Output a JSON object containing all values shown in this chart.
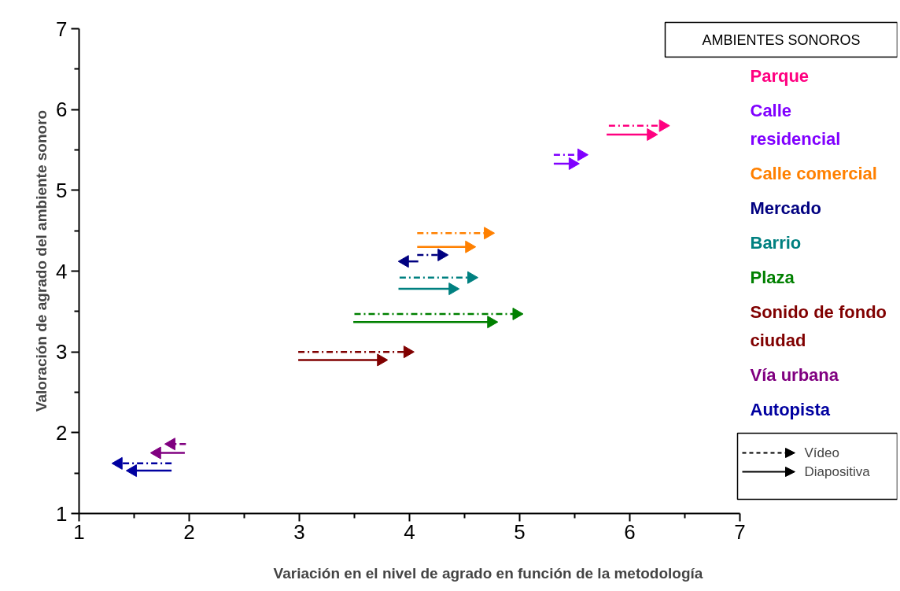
{
  "chart_data": {
    "type": "line",
    "xlabel": "Variación en el nivel de agrado en función de la metodología",
    "ylabel": "Valoración de agrado del ambiente sonoro",
    "xlim": [
      1,
      7
    ],
    "xticks": [
      1,
      2,
      3,
      4,
      5,
      6,
      7
    ],
    "ylim": [
      1,
      7
    ],
    "yticks": [
      1,
      2,
      3,
      4,
      5,
      6,
      7
    ],
    "grid": false,
    "legend": "top right",
    "legend_title": "AMBIENTES SONOROS",
    "marker": "triangle",
    "annotations": [
      "Vídeo",
      "Diapositiva"
    ],
    "series": [
      {
        "name": "Parque",
        "color": "#ff0080",
        "line_style": "dashed",
        "x": [
          5.81,
          6.3
        ],
        "values": [
          5.8,
          5.8
        ]
      },
      {
        "color": "#ff0080",
        "line_style": "solid",
        "x": [
          5.79,
          6.19
        ],
        "values": [
          5.69,
          5.69
        ]
      },
      {
        "name": "Calle residencial",
        "color": "#8000ff",
        "line_style": "dashed",
        "x": [
          5.31,
          5.56
        ],
        "values": [
          5.44,
          5.44
        ]
      },
      {
        "color": "#8000ff",
        "line_style": "solid",
        "x": [
          5.31,
          5.48
        ],
        "values": [
          5.33,
          5.33
        ]
      },
      {
        "name": "Calle comercial",
        "color": "#ff8000",
        "line_style": "dashed",
        "x": [
          4.07,
          4.71
        ],
        "values": [
          4.47,
          4.47
        ]
      },
      {
        "color": "#ff8000",
        "line_style": "solid",
        "x": [
          4.07,
          4.54
        ],
        "values": [
          4.3,
          4.3
        ]
      },
      {
        "name": "Mercado",
        "color": "#000080",
        "line_style": "dashed",
        "x": [
          4.07,
          4.29
        ],
        "values": [
          4.2,
          4.2
        ]
      },
      {
        "color": "#000080",
        "line_style": "solid",
        "x": [
          4.08,
          3.96
        ],
        "values": [
          4.12,
          4.12
        ]
      },
      {
        "name": "Barrio",
        "color": "#008080",
        "line_style": "dashed",
        "x": [
          3.91,
          4.56
        ],
        "values": [
          3.92,
          3.92
        ]
      },
      {
        "color": "#008080",
        "line_style": "solid",
        "x": [
          3.9,
          4.39
        ],
        "values": [
          3.78,
          3.78
        ]
      },
      {
        "name": "Plaza",
        "color": "#008000",
        "line_style": "dashed",
        "x": [
          3.5,
          4.97
        ],
        "values": [
          3.47,
          3.47
        ]
      },
      {
        "color": "#008000",
        "line_style": "solid",
        "x": [
          3.49,
          4.74
        ],
        "values": [
          3.37,
          3.37
        ]
      },
      {
        "name": "Sonido de fondo ciudad",
        "color": "#800000",
        "line_style": "dashed",
        "x": [
          2.99,
          3.98
        ],
        "values": [
          3.0,
          3.0
        ]
      },
      {
        "color": "#800000",
        "line_style": "solid",
        "x": [
          2.99,
          3.74
        ],
        "values": [
          2.9,
          2.9
        ]
      },
      {
        "name": "Vía urbana",
        "color": "#800080",
        "line_style": "dashed",
        "x": [
          1.97,
          1.84
        ],
        "values": [
          1.86,
          1.86
        ]
      },
      {
        "color": "#800080",
        "line_style": "solid",
        "x": [
          1.96,
          1.71
        ],
        "values": [
          1.75,
          1.75
        ]
      },
      {
        "name": "Autopista",
        "color": "#0000a0",
        "line_style": "dashed",
        "x": [
          1.84,
          1.36
        ],
        "values": [
          1.62,
          1.62
        ]
      },
      {
        "color": "#0000a0",
        "line_style": "solid",
        "x": [
          1.84,
          1.49
        ],
        "values": [
          1.53,
          1.53
        ]
      }
    ]
  }
}
